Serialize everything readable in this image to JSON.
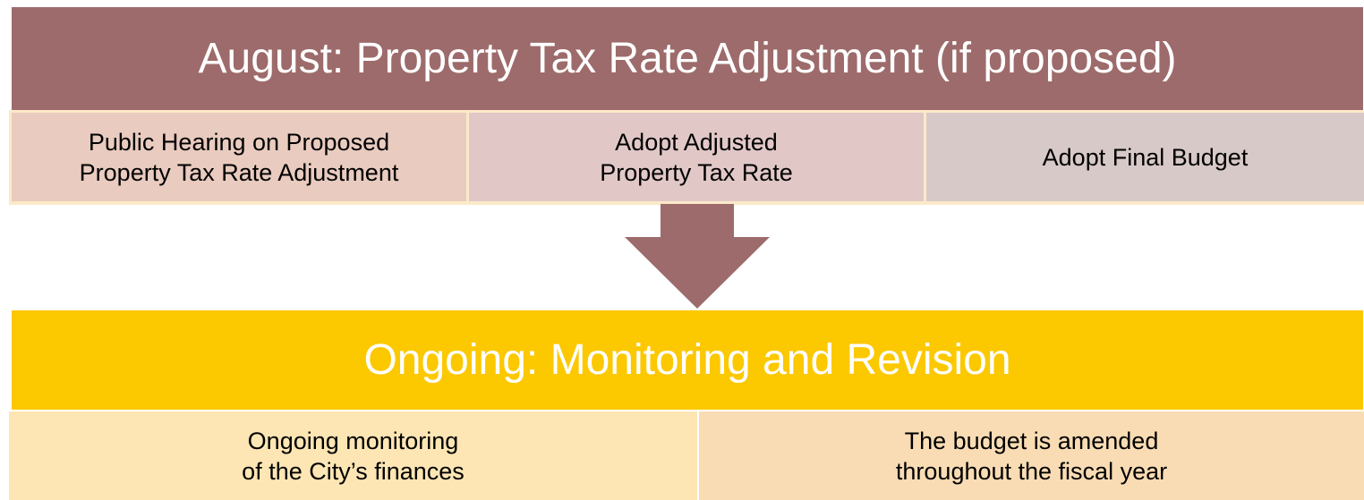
{
  "sections": [
    {
      "title": "August: Property Tax Rate Adjustment (if proposed)",
      "items": [
        {
          "lines": [
            "Public Hearing on Proposed",
            "Property Tax Rate Adjustment"
          ]
        },
        {
          "lines": [
            "Adopt Adjusted",
            "Property Tax Rate"
          ]
        },
        {
          "lines": [
            "Adopt Final Budget"
          ]
        }
      ]
    },
    {
      "title": "Ongoing: Monitoring and Revision",
      "items": [
        {
          "lines": [
            "Ongoing monitoring",
            "of the City’s finances"
          ]
        },
        {
          "lines": [
            "The budget is amended",
            "throughout the fiscal year"
          ]
        }
      ]
    }
  ]
}
